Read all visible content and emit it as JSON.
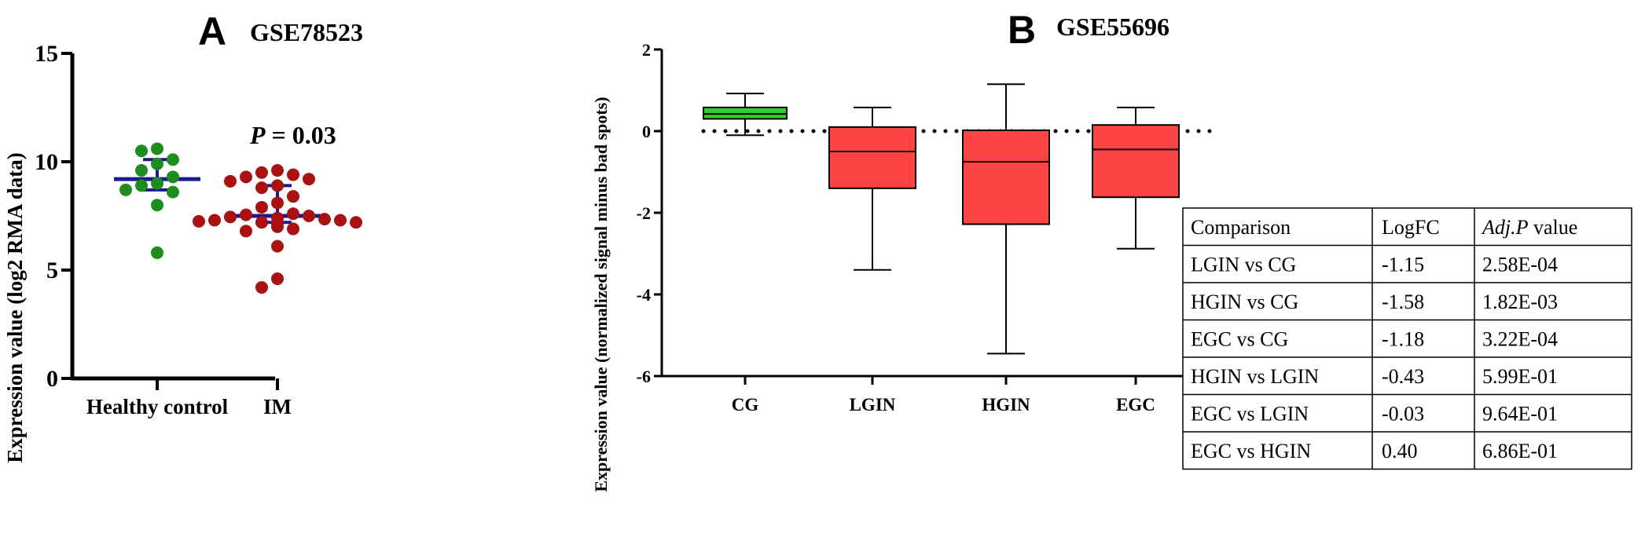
{
  "chart_data": [
    {
      "type": "scatter",
      "panel_letter": "A",
      "title": "GSE78523",
      "ylabel": "Expression value (log2 RMA data)",
      "ylim": [
        0,
        15
      ],
      "yticks": [
        0,
        5,
        10,
        15
      ],
      "categories": [
        "Healthy control",
        "IM"
      ],
      "annotation": {
        "prefix": "P",
        "text": " = 0.03"
      },
      "colors": {
        "Healthy control": "#1e8c1e",
        "IM": "#aa1111",
        "summary": "#1a1a8c"
      },
      "series": [
        {
          "category": "Healthy control",
          "values": [
            10.6,
            10.5,
            10.1,
            9.9,
            9.6,
            9.3,
            9.0,
            8.9,
            8.7,
            8.6,
            8.0,
            5.8
          ],
          "median": 9.2,
          "q1": 8.7,
          "q3": 10.1
        },
        {
          "category": "IM",
          "values": [
            9.6,
            9.5,
            9.4,
            9.3,
            9.2,
            9.1,
            8.9,
            8.8,
            8.4,
            8.1,
            7.9,
            7.6,
            7.55,
            7.5,
            7.45,
            7.4,
            7.35,
            7.3,
            7.3,
            7.25,
            7.2,
            7.2,
            7.15,
            7.0,
            6.9,
            6.8,
            6.1,
            4.6,
            4.2
          ],
          "median": 7.5,
          "q1": 7.2,
          "q3": 8.9
        }
      ]
    },
    {
      "type": "box",
      "panel_letter": "B",
      "title": "GSE55696",
      "ylabel": "Expression value (normalized signal minus bad spots)",
      "ylim": [
        -6,
        2
      ],
      "yticks": [
        2,
        0,
        -2,
        -4,
        -6
      ],
      "reference_line": 0,
      "categories": [
        "CG",
        "LGIN",
        "HGIN",
        "EGC"
      ],
      "colors": {
        "CG": "#33cc33",
        "LGIN": "#ff4444",
        "HGIN": "#ff4444",
        "EGC": "#ff4444"
      },
      "boxes": [
        {
          "category": "CG",
          "min": -0.1,
          "q1": 0.3,
          "median": 0.42,
          "q3": 0.58,
          "max": 0.92
        },
        {
          "category": "LGIN",
          "min": -3.4,
          "q1": -1.4,
          "median": -0.5,
          "q3": 0.1,
          "max": 0.58
        },
        {
          "category": "HGIN",
          "min": -5.45,
          "q1": -2.28,
          "median": -0.75,
          "q3": 0.02,
          "max": 1.15
        },
        {
          "category": "EGC",
          "min": -2.88,
          "q1": -1.62,
          "median": -0.45,
          "q3": 0.15,
          "max": 0.58
        }
      ],
      "table": {
        "headers": [
          "Comparison",
          "LogFC",
          "Adj.P value"
        ],
        "rows": [
          [
            "LGIN vs CG",
            "-1.15",
            "2.58E-04"
          ],
          [
            "HGIN vs CG",
            "-1.58",
            "1.82E-03"
          ],
          [
            "EGC vs CG",
            "-1.18",
            "3.22E-04"
          ],
          [
            "HGIN vs LGIN",
            "-0.43",
            "5.99E-01"
          ],
          [
            "EGC vs LGIN",
            "-0.03",
            "9.64E-01"
          ],
          [
            "EGC vs HGIN",
            "0.40",
            "6.86E-01"
          ]
        ]
      }
    }
  ]
}
